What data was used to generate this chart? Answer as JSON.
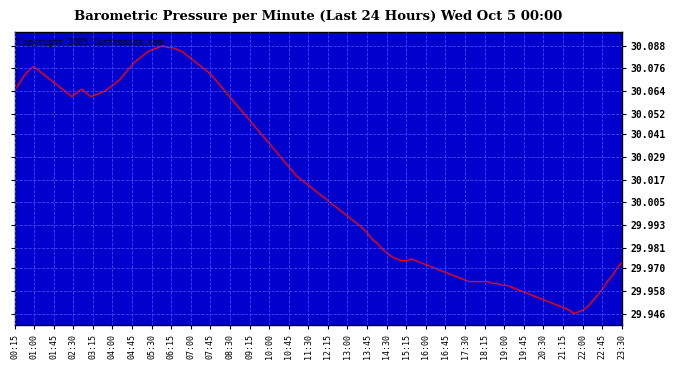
{
  "title": "Barometric Pressure per Minute (Last 24 Hours) Wed Oct 5 00:00",
  "copyright": "Copyright 2005 Curtronics.com",
  "background_color": "#0000cc",
  "line_color": "#ff0000",
  "line_width": 1.0,
  "grid_color": "#4444ff",
  "border_color": "#000000",
  "ytick_labels": [
    "30.088",
    "30.076",
    "30.064",
    "30.052",
    "30.041",
    "30.029",
    "30.017",
    "30.005",
    "29.993",
    "29.981",
    "29.970",
    "29.958",
    "29.946"
  ],
  "ytick_values": [
    30.088,
    30.076,
    30.064,
    30.052,
    30.041,
    30.029,
    30.017,
    30.005,
    29.993,
    29.981,
    29.97,
    29.958,
    29.946
  ],
  "ylim": [
    29.94,
    30.095
  ],
  "xtick_labels": [
    "00:15",
    "01:00",
    "01:45",
    "02:30",
    "03:15",
    "04:00",
    "04:45",
    "05:30",
    "06:15",
    "07:00",
    "07:45",
    "08:30",
    "09:15",
    "10:00",
    "10:45",
    "11:30",
    "12:15",
    "13:00",
    "13:45",
    "14:30",
    "15:15",
    "16:00",
    "16:45",
    "17:30",
    "18:15",
    "19:00",
    "19:45",
    "20:30",
    "21:15",
    "22:00",
    "22:45",
    "23:30"
  ],
  "pressure_data": [
    30.064,
    30.068,
    30.072,
    30.075,
    30.077,
    30.075,
    30.073,
    30.071,
    30.069,
    30.067,
    30.065,
    30.063,
    30.061,
    30.063,
    30.065,
    30.063,
    30.061,
    30.062,
    30.063,
    30.064,
    30.066,
    30.068,
    30.07,
    30.073,
    30.076,
    30.079,
    30.081,
    30.083,
    30.085,
    30.086,
    30.087,
    30.088,
    30.087,
    30.087,
    30.086,
    30.085,
    30.083,
    30.081,
    30.079,
    30.077,
    30.075,
    30.073,
    30.07,
    30.067,
    30.064,
    30.061,
    30.058,
    30.055,
    30.052,
    30.049,
    30.046,
    30.043,
    30.04,
    30.037,
    30.034,
    30.031,
    30.028,
    30.025,
    30.022,
    30.019,
    30.017,
    30.015,
    30.013,
    30.011,
    30.009,
    30.007,
    30.005,
    30.003,
    30.001,
    29.999,
    29.997,
    29.995,
    29.993,
    29.991,
    29.988,
    29.985,
    29.983,
    29.98,
    29.978,
    29.976,
    29.975,
    29.974,
    29.974,
    29.975,
    29.974,
    29.973,
    29.972,
    29.971,
    29.97,
    29.969,
    29.968,
    29.967,
    29.966,
    29.965,
    29.964,
    29.963,
    29.963,
    29.963,
    29.963,
    29.963,
    29.962,
    29.962,
    29.961,
    29.961,
    29.96,
    29.959,
    29.958,
    29.957,
    29.956,
    29.955,
    29.954,
    29.953,
    29.952,
    29.951,
    29.95,
    29.949,
    29.948,
    29.946,
    29.947,
    29.948,
    29.95,
    29.953,
    29.956,
    29.959,
    29.963,
    29.966,
    29.97,
    29.973
  ]
}
